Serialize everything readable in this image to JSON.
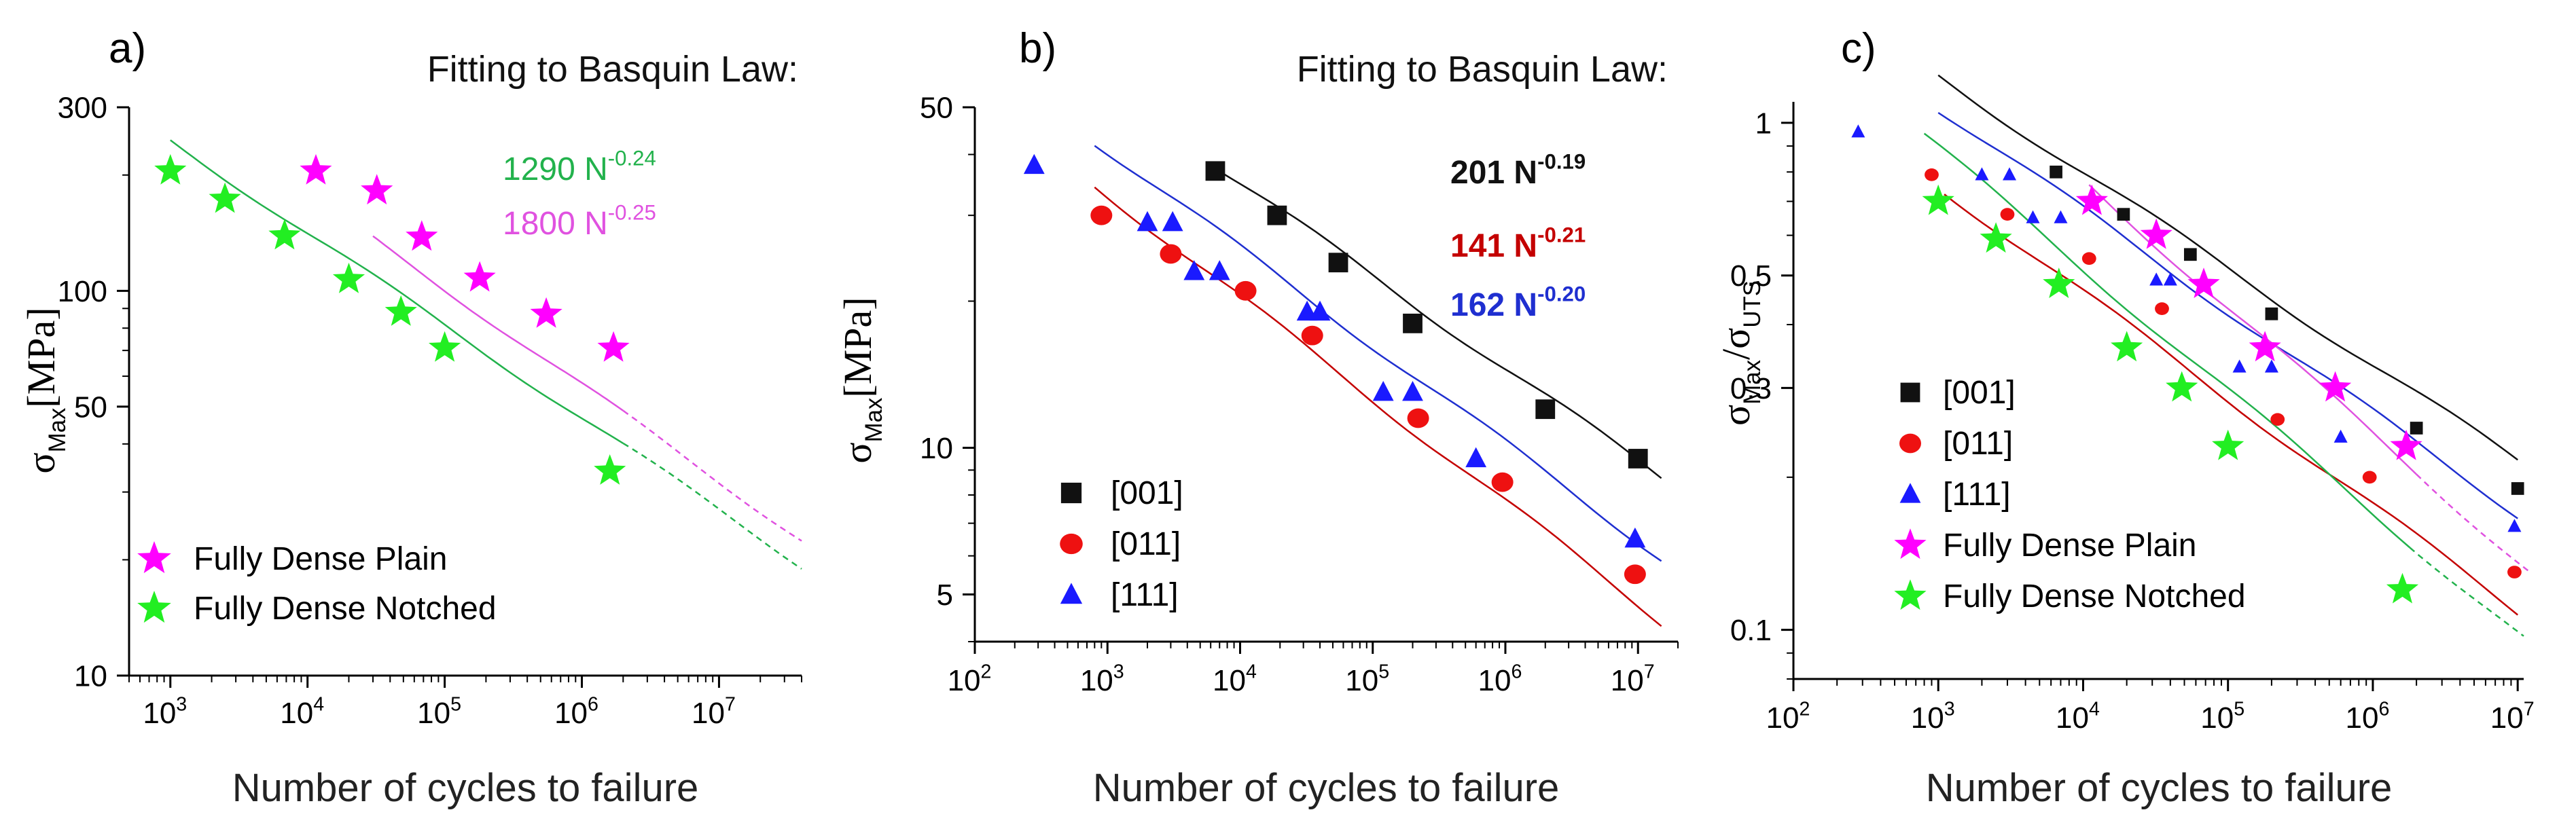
{
  "chart_data": [
    {
      "type": "scatter",
      "panel_label": "a)",
      "annotation_title": "Fitting to Basquin Law:",
      "ylabel": {
        "base": "σ",
        "sub": "Max",
        "unit": "[MPa]"
      },
      "xlabel": "Number of cycles to failure",
      "xscale": "log",
      "yscale": "log",
      "xlim": [
        500,
        40000000
      ],
      "ylim": [
        10,
        300
      ],
      "x_ticks": [
        {
          "v": 1000,
          "e": "3"
        },
        {
          "v": 10000,
          "e": "4"
        },
        {
          "v": 100000,
          "e": "5"
        },
        {
          "v": 1000000,
          "e": "6"
        },
        {
          "v": 10000000,
          "e": "7"
        }
      ],
      "y_ticks": [
        {
          "v": 10,
          "t": "10"
        },
        {
          "v": 50,
          "t": "50"
        },
        {
          "v": 100,
          "t": "100"
        },
        {
          "v": 300,
          "t": "300"
        }
      ],
      "fits": [
        {
          "label": "1290 N",
          "exp": "-0.24",
          "color": "#22b24c",
          "A": 1290,
          "b": -0.24,
          "solid": [
            1000,
            2000000
          ],
          "dashed": [
            2000000,
            40000000
          ]
        },
        {
          "label": "1800 N",
          "exp": "-0.25",
          "color": "#e052e0",
          "A": 1800,
          "b": -0.25,
          "solid": [
            30000,
            2000000
          ],
          "dashed": [
            2000000,
            40000000
          ]
        }
      ],
      "series": [
        {
          "name": "Fully Dense Plain",
          "color": "#ff00ff",
          "marker": "star",
          "points": [
            [
              11500,
              205
            ],
            [
              32000,
              182
            ],
            [
              68000,
              138
            ],
            [
              180000,
              108
            ],
            [
              550000,
              87
            ],
            [
              1700000,
              71
            ]
          ]
        },
        {
          "name": "Fully Dense Notched",
          "color": "#22ee22",
          "marker": "star",
          "points": [
            [
              1000,
              205
            ],
            [
              2500,
              173
            ],
            [
              6800,
              139
            ],
            [
              20000,
              107
            ],
            [
              48000,
              88
            ],
            [
              100000,
              71
            ],
            [
              1600000,
              34
            ]
          ]
        }
      ]
    },
    {
      "type": "scatter",
      "panel_label": "b)",
      "annotation_title": "Fitting to Basquin Law:",
      "ylabel": {
        "base": "σ",
        "sub": "Max",
        "unit": "[MPa]"
      },
      "xlabel": "Number of cycles to failure",
      "xscale": "log",
      "yscale": "log",
      "xlim": [
        100,
        20000000
      ],
      "ylim": [
        4,
        50
      ],
      "x_ticks": [
        {
          "v": 100,
          "e": "2"
        },
        {
          "v": 1000,
          "e": "3"
        },
        {
          "v": 10000,
          "e": "4"
        },
        {
          "v": 100000,
          "e": "5"
        },
        {
          "v": 1000000,
          "e": "6"
        },
        {
          "v": 10000000,
          "e": "7"
        }
      ],
      "y_ticks": [
        {
          "v": 5,
          "t": "5"
        },
        {
          "v": 10,
          "t": "10"
        },
        {
          "v": 50,
          "t": "50"
        }
      ],
      "fits": [
        {
          "label": "201 N",
          "exp": "-0.19",
          "color": "#111111",
          "A": 201,
          "b": -0.19,
          "solid": [
            6000,
            15000000
          ]
        },
        {
          "label": "141 N",
          "exp": "-0.21",
          "color": "#c40000",
          "A": 141,
          "b": -0.21,
          "solid": [
            800,
            15000000
          ]
        },
        {
          "label": "162 N",
          "exp": "-0.20",
          "color": "#1f2fd0",
          "A": 162,
          "b": -0.2,
          "solid": [
            800,
            15000000
          ]
        }
      ],
      "series": [
        {
          "name": "[001]",
          "color": "#111111",
          "marker": "square",
          "points": [
            [
              6500,
              37
            ],
            [
              19000,
              30
            ],
            [
              55000,
              24
            ],
            [
              200000,
              18
            ],
            [
              2000000,
              12
            ],
            [
              10000000,
              9.5
            ]
          ]
        },
        {
          "name": "[011]",
          "color": "#ee1111",
          "marker": "circle",
          "points": [
            [
              900,
              30
            ],
            [
              3000,
              25
            ],
            [
              11000,
              21
            ],
            [
              35000,
              17
            ],
            [
              220000,
              11.5
            ],
            [
              950000,
              8.5
            ],
            [
              9500000,
              5.5
            ]
          ]
        },
        {
          "name": "[111]",
          "color": "#1a1aff",
          "marker": "triangle",
          "points": [
            [
              280,
              38
            ],
            [
              2000,
              29
            ],
            [
              3100,
              29
            ],
            [
              4500,
              23
            ],
            [
              7000,
              23
            ],
            [
              32000,
              19
            ],
            [
              40000,
              19
            ],
            [
              120000,
              13
            ],
            [
              200000,
              13
            ],
            [
              600000,
              9.5
            ],
            [
              9500000,
              6.5
            ]
          ]
        }
      ]
    },
    {
      "type": "scatter",
      "panel_label": "c)",
      "ylabel": {
        "base": "σ",
        "sub": "Max",
        "sep": "/σ",
        "sub2": "UTS"
      },
      "xlabel": "Number of cycles to failure",
      "xscale": "log",
      "yscale": "log",
      "xlim": [
        100,
        11000000
      ],
      "ylim": [
        0.08,
        1.1
      ],
      "x_ticks": [
        {
          "v": 100,
          "e": "2"
        },
        {
          "v": 1000,
          "e": "3"
        },
        {
          "v": 10000,
          "e": "4"
        },
        {
          "v": 100000,
          "e": "5"
        },
        {
          "v": 1000000,
          "e": "6"
        },
        {
          "v": 10000000,
          "e": "7"
        }
      ],
      "y_ticks": [
        {
          "v": 0.1,
          "t": "0.1"
        },
        {
          "v": 0.3,
          "t": "0.3"
        },
        {
          "v": 0.5,
          "t": "0.5"
        },
        {
          "v": 1,
          "t": "1"
        }
      ],
      "fits": [
        {
          "color": "#111111",
          "A": 4.6,
          "b": -0.19,
          "solid": [
            1000,
            10000000
          ]
        },
        {
          "color": "#c40000",
          "A": 3.2,
          "b": -0.21,
          "solid": [
            1100,
            10000000
          ]
        },
        {
          "color": "#1f2fd0",
          "A": 4.25,
          "b": -0.2,
          "solid": [
            1000,
            10000000
          ]
        },
        {
          "color": "#e052e0",
          "A": 7.7,
          "b": -0.25,
          "solid": [
            11000,
            2000000
          ],
          "dashed": [
            2000000,
            12000000
          ]
        },
        {
          "color": "#22b24c",
          "A": 4.7,
          "b": -0.24,
          "solid": [
            800,
            1800000
          ],
          "dashed": [
            1800000,
            11000000
          ]
        }
      ],
      "series": [
        {
          "name": "[001]",
          "color": "#111111",
          "marker": "square",
          "points": [
            [
              6500,
              0.8
            ],
            [
              19000,
              0.66
            ],
            [
              55000,
              0.55
            ],
            [
              200000,
              0.42
            ],
            [
              2000000,
              0.25
            ],
            [
              10000000,
              0.19
            ]
          ]
        },
        {
          "name": "[011]",
          "color": "#ee1111",
          "marker": "circle",
          "points": [
            [
              900,
              0.79
            ],
            [
              3000,
              0.66
            ],
            [
              11000,
              0.54
            ],
            [
              35000,
              0.43
            ],
            [
              220000,
              0.26
            ],
            [
              950000,
              0.2
            ],
            [
              9500000,
              0.13
            ]
          ]
        },
        {
          "name": "[111]",
          "color": "#1a1aff",
          "marker": "triangle",
          "points": [
            [
              280,
              0.96
            ],
            [
              2000,
              0.79
            ],
            [
              3100,
              0.79
            ],
            [
              4500,
              0.65
            ],
            [
              7000,
              0.65
            ],
            [
              32000,
              0.49
            ],
            [
              40000,
              0.49
            ],
            [
              120000,
              0.33
            ],
            [
              200000,
              0.33
            ],
            [
              600000,
              0.24
            ],
            [
              9500000,
              0.16
            ]
          ]
        },
        {
          "name": "Fully Dense Plain",
          "color": "#ff00ff",
          "marker": "star",
          "points": [
            [
              11500,
              0.7
            ],
            [
              32000,
              0.6
            ],
            [
              68000,
              0.48
            ],
            [
              180000,
              0.36
            ],
            [
              550000,
              0.3
            ],
            [
              1700000,
              0.23
            ]
          ]
        },
        {
          "name": "Fully Dense Notched",
          "color": "#22ee22",
          "marker": "star",
          "points": [
            [
              1000,
              0.7
            ],
            [
              2500,
              0.59
            ],
            [
              6800,
              0.48
            ],
            [
              20000,
              0.36
            ],
            [
              48000,
              0.3
            ],
            [
              100000,
              0.23
            ],
            [
              1600000,
              0.12
            ]
          ]
        }
      ]
    }
  ]
}
